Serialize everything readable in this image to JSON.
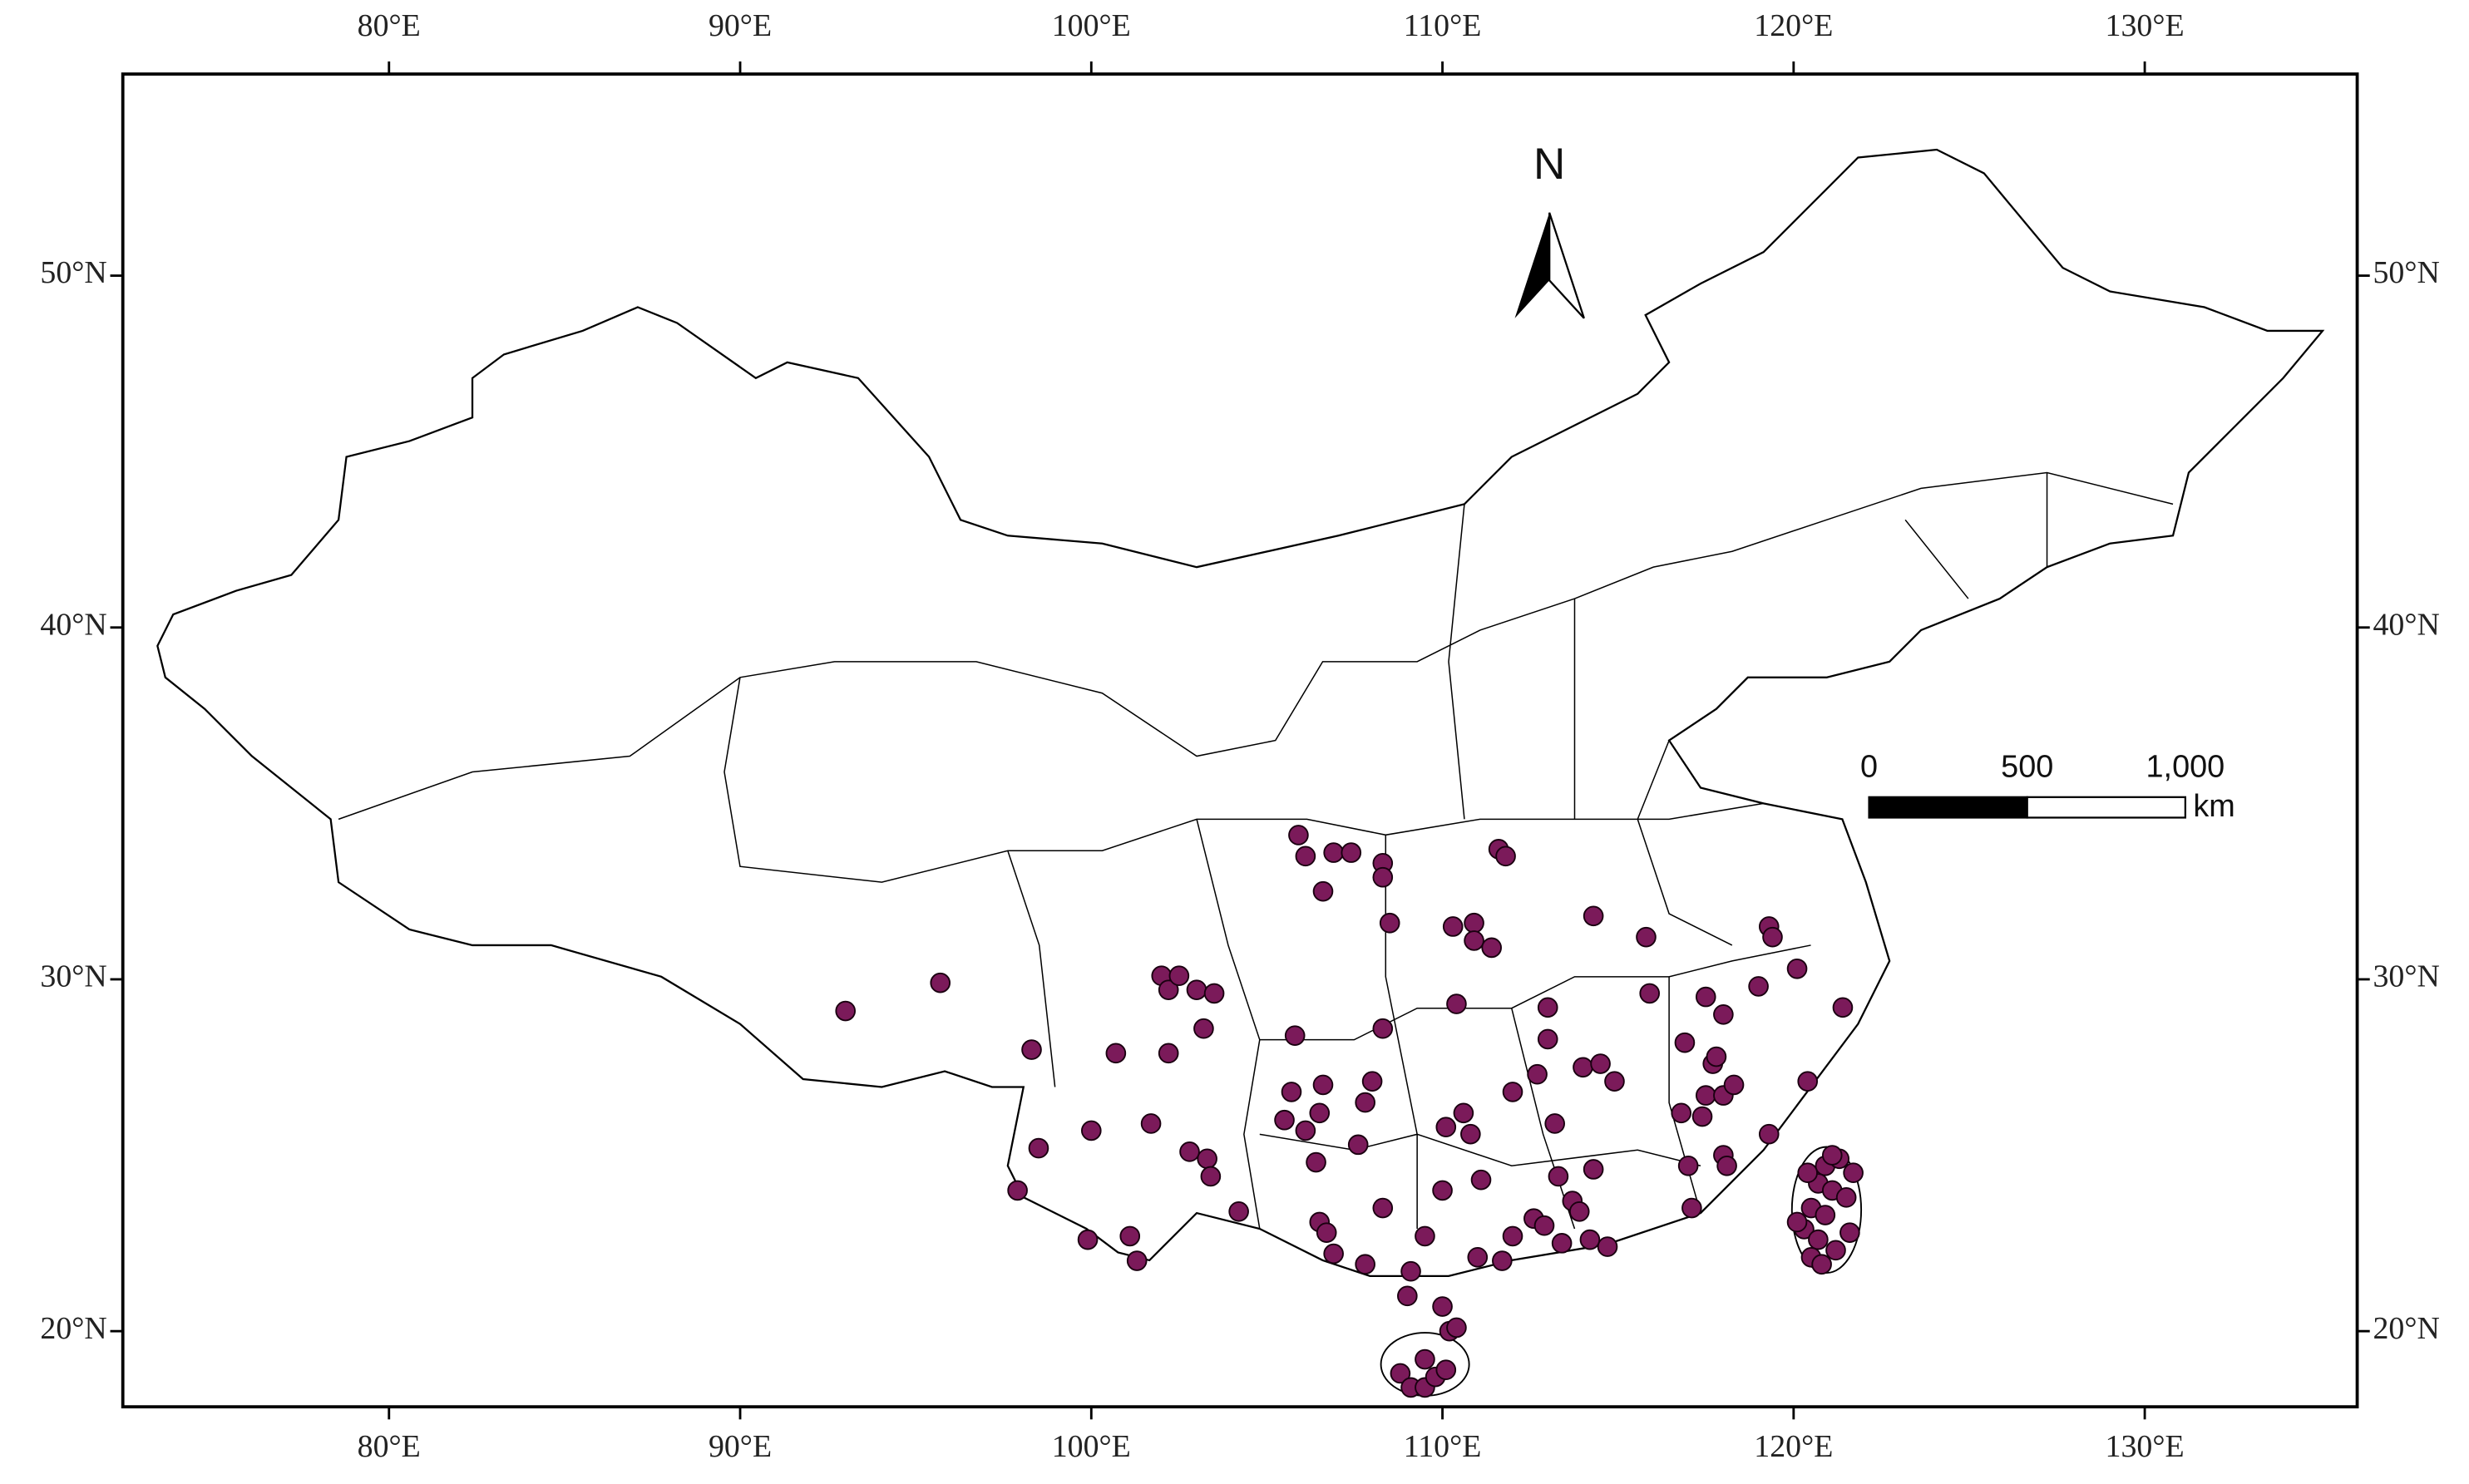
{
  "chart_data": {
    "type": "scatter",
    "xlim": [
      72.42,
      136.05
    ],
    "ylim": [
      17.85,
      55.73
    ],
    "xticks": [
      {
        "value": 80,
        "label": "80°E"
      },
      {
        "value": 90,
        "label": "90°E"
      },
      {
        "value": 100,
        "label": "100°E"
      },
      {
        "value": 110,
        "label": "110°E"
      },
      {
        "value": 120,
        "label": "120°E"
      },
      {
        "value": 130,
        "label": "130°E"
      }
    ],
    "yticks": [
      {
        "value": 20,
        "label": "20°N"
      },
      {
        "value": 30,
        "label": "30°N"
      },
      {
        "value": 40,
        "label": "40°N"
      },
      {
        "value": 50,
        "label": "50°N"
      }
    ],
    "north_label": "N",
    "scale_bar": {
      "ticks": [
        {
          "value": 0,
          "label": "0"
        },
        {
          "value": 500,
          "label": "500"
        },
        {
          "value": 1000,
          "label": "1,000"
        }
      ],
      "unit": "km"
    },
    "color": "#7b1a5a",
    "x": [
      93.0,
      95.7,
      98.3,
      97.9,
      98.5,
      100.0,
      99.9,
      100.7,
      101.1,
      101.3,
      101.7,
      102.2,
      102.0,
      102.2,
      102.5,
      103.0,
      103.5,
      103.2,
      102.8,
      103.3,
      103.4,
      104.2,
      105.8,
      105.9,
      106.1,
      106.9,
      107.4,
      108.3,
      108.3,
      106.6,
      108.5,
      105.7,
      106.6,
      105.5,
      106.1,
      106.5,
      106.4,
      107.6,
      108.0,
      107.8,
      108.3,
      106.5,
      106.7,
      106.9,
      107.8,
      108.3,
      109.1,
      109.0,
      109.5,
      110.0,
      110.1,
      110.4,
      110.3,
      110.9,
      110.9,
      111.4,
      111.6,
      111.8,
      110.6,
      110.8,
      111.1,
      112.0,
      112.7,
      113.0,
      113.0,
      113.2,
      111.0,
      111.7,
      112.0,
      112.6,
      112.9,
      113.3,
      113.7,
      113.9,
      113.4,
      114.2,
      114.7,
      114.3,
      114.0,
      114.5,
      114.9,
      114.3,
      115.8,
      115.9,
      116.9,
      116.8,
      117.0,
      117.1,
      117.4,
      117.5,
      117.7,
      117.8,
      118.0,
      117.5,
      118.0,
      118.1,
      118.0,
      118.3,
      119.0,
      119.3,
      119.4,
      120.1,
      119.3,
      120.4,
      121.4,
      120.9,
      121.3,
      120.7,
      121.1,
      120.5,
      120.9,
      121.5,
      120.3,
      120.7,
      121.2,
      120.5,
      120.8,
      121.6,
      121.7,
      120.1,
      121.1,
      120.4,
      108.8,
      109.1,
      109.5,
      109.8,
      109.5,
      110.1,
      110.2,
      110.0,
      110.4
    ],
    "values": [
      29.1,
      29.9,
      28.0,
      24.0,
      25.2,
      25.7,
      22.6,
      27.9,
      22.7,
      22.0,
      25.9,
      27.9,
      30.1,
      29.7,
      30.1,
      29.7,
      29.6,
      28.6,
      25.1,
      24.9,
      24.4,
      23.4,
      28.4,
      34.1,
      33.5,
      33.6,
      33.6,
      33.3,
      32.9,
      32.5,
      31.6,
      26.8,
      27.0,
      26.0,
      25.7,
      26.2,
      24.8,
      25.3,
      27.1,
      26.5,
      28.6,
      23.1,
      22.8,
      22.2,
      21.9,
      23.5,
      21.7,
      21.0,
      22.7,
      24.0,
      25.8,
      29.3,
      31.5,
      31.6,
      31.1,
      30.9,
      33.7,
      33.5,
      26.2,
      25.6,
      24.3,
      26.8,
      27.3,
      28.3,
      29.2,
      25.9,
      22.1,
      22.0,
      22.7,
      23.2,
      23.0,
      24.4,
      23.7,
      23.4,
      22.5,
      22.6,
      22.4,
      24.6,
      27.5,
      27.6,
      27.1,
      31.8,
      31.2,
      29.6,
      28.2,
      26.2,
      24.7,
      23.5,
      26.1,
      26.7,
      27.6,
      27.8,
      29.0,
      29.5,
      25.0,
      24.7,
      26.7,
      27.0,
      29.8,
      31.5,
      31.2,
      30.3,
      25.6,
      27.1,
      29.2,
      24.7,
      24.9,
      24.2,
      24.0,
      23.5,
      23.3,
      23.8,
      22.9,
      22.6,
      22.3,
      22.1,
      21.9,
      22.8,
      24.5,
      23.1,
      25.0,
      24.5,
      18.8,
      18.4,
      18.4,
      18.7,
      19.2,
      18.9,
      20.0,
      20.7,
      20.1
    ]
  }
}
